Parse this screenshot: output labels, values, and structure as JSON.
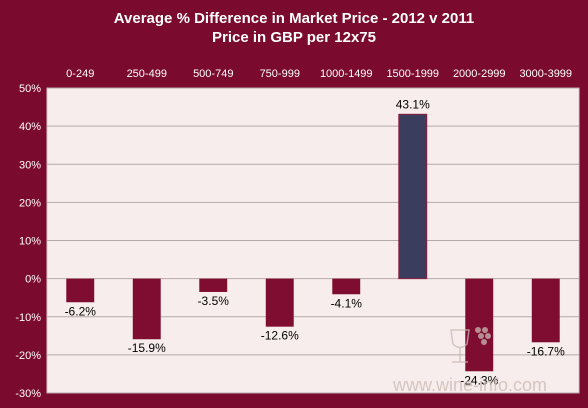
{
  "chart_data": {
    "type": "bar",
    "title": "Average % Difference in Market Price - 2012 v 2011",
    "subtitle": "Price in GBP per 12x75",
    "categories": [
      "0-249",
      "250-499",
      "500-749",
      "750-999",
      "1000-1499",
      "1500-1999",
      "2000-2999",
      "3000-3999"
    ],
    "values": [
      -6.2,
      -15.9,
      -3.5,
      -12.6,
      -4.1,
      43.1,
      -24.3,
      -16.7
    ],
    "value_labels": [
      "-6.2%",
      "-15.9%",
      "-3.5%",
      "-12.6%",
      "-4.1%",
      "43.1%",
      "-24.3%",
      "-16.7%"
    ],
    "highlight_index": 5,
    "ylim": [
      -30,
      50
    ],
    "yticks": [
      50,
      40,
      30,
      20,
      10,
      0,
      -10,
      -20,
      -30
    ],
    "ytick_labels": [
      "50%",
      "40%",
      "30%",
      "20%",
      "10%",
      "0%",
      "-10%",
      "-20%",
      "-30%"
    ],
    "xlabel": "",
    "ylabel": "",
    "category_axis_position": "top",
    "grid": true,
    "legend": "none",
    "colors": {
      "background": "#7a0a2e",
      "plot_area": "#f8eded",
      "bar": "#7e0d31",
      "highlight_bar": "#3b3d5e",
      "gridline": "#b5a8a8",
      "text_light": "#ffffff",
      "text_dark": "#000000"
    }
  },
  "watermark": {
    "text": "www.wine-info.com"
  }
}
